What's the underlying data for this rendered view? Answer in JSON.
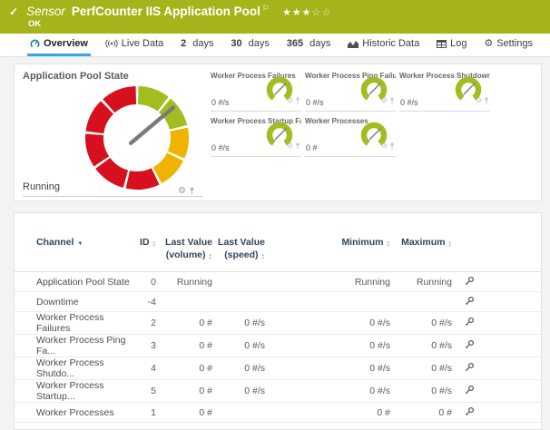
{
  "colors": {
    "sensor_green": "#a7b31a",
    "gauge_green": "#a2bd20",
    "gauge_yellow": "#f0b400",
    "gauge_red": "#d6101f",
    "needle_gray": "#7a7a7a",
    "tab_accent": "#36a9e0",
    "table_header_navy": "#32455a"
  },
  "header": {
    "kind": "Sensor",
    "title": "PerfCounter IIS Application Pool",
    "status": "OK",
    "stars_filled": "★★★",
    "stars_empty": "☆☆"
  },
  "tabs": [
    {
      "label": "Overview",
      "icon": "gauge-icon",
      "active": true
    },
    {
      "label": "Live Data",
      "icon": "broadcast-icon"
    },
    {
      "strong": "2",
      "label": "days"
    },
    {
      "strong": "30",
      "label": "days"
    },
    {
      "strong": "365",
      "label": "days"
    },
    {
      "label": "Historic Data",
      "icon": "chart-icon"
    },
    {
      "label": "Log",
      "icon": "log-table-icon"
    },
    {
      "label": "Settings",
      "icon": "gear-icon"
    }
  ],
  "overview": {
    "main_gauge": {
      "title": "Application Pool State",
      "status": "Running",
      "needle_angle": 50,
      "segments": [
        {
          "from": 1.5,
          "to": 37.5,
          "color": "green"
        },
        {
          "from": 40.5,
          "to": 75.5,
          "color": "green"
        },
        {
          "from": 78.5,
          "to": 113.5,
          "color": "yellow"
        },
        {
          "from": 116.5,
          "to": 151.5,
          "color": "yellow"
        },
        {
          "from": 154.5,
          "to": 192.5,
          "color": "red"
        },
        {
          "from": 195.5,
          "to": 233.5,
          "color": "red"
        },
        {
          "from": 236.5,
          "to": 274.5,
          "color": "red"
        },
        {
          "from": 277.5,
          "to": 315.5,
          "color": "red"
        },
        {
          "from": 318.5,
          "to": 358.5,
          "color": "red"
        }
      ]
    },
    "mini_gauge": {
      "needle_angle": 45,
      "arc_from": 215,
      "arc_to": 505
    },
    "tiles": [
      {
        "title": "Worker Process Failures",
        "value": "0 #/s"
      },
      {
        "title": "Worker Process Ping Failures",
        "value": "0 #/s"
      },
      {
        "title": "Worker Process Shutdown Fa...",
        "value": "0 #/s"
      },
      {
        "title": "Worker Process Startup Failu...",
        "value": "0 #/s"
      },
      {
        "title": "Worker Processes",
        "value": "0 #"
      }
    ]
  },
  "table": {
    "columns": [
      {
        "label": "Channel",
        "sort": "desc"
      },
      {
        "label": "ID",
        "sort": "both"
      },
      {
        "label": "Last Value (volume)",
        "sort": "both"
      },
      {
        "label": "Last Value (speed)",
        "sort": "both"
      },
      {
        "label": "Minimum",
        "sort": "both"
      },
      {
        "label": "Maximum",
        "sort": "both"
      }
    ],
    "rows": [
      {
        "channel": "Application Pool State",
        "id": "0",
        "lv_volume": "Running",
        "lv_speed": "",
        "min": "Running",
        "max": "Running"
      },
      {
        "channel": "Downtime",
        "id": "-4",
        "lv_volume": "",
        "lv_speed": "",
        "min": "",
        "max": ""
      },
      {
        "channel": "Worker Process Failures",
        "id": "2",
        "lv_volume": "0 #",
        "lv_speed": "0 #/s",
        "min": "0 #/s",
        "max": "0 #/s"
      },
      {
        "channel": "Worker Process Ping Fa...",
        "id": "3",
        "lv_volume": "0 #",
        "lv_speed": "0 #/s",
        "min": "0 #/s",
        "max": "0 #/s"
      },
      {
        "channel": "Worker Process Shutdo...",
        "id": "4",
        "lv_volume": "0 #",
        "lv_speed": "0 #/s",
        "min": "0 #/s",
        "max": "0 #/s"
      },
      {
        "channel": "Worker Process Startup...",
        "id": "5",
        "lv_volume": "0 #",
        "lv_speed": "0 #/s",
        "min": "0 #/s",
        "max": "0 #/s"
      },
      {
        "channel": "Worker Processes",
        "id": "1",
        "lv_volume": "0 #",
        "lv_speed": "",
        "min": "0 #",
        "max": "0 #"
      }
    ]
  }
}
